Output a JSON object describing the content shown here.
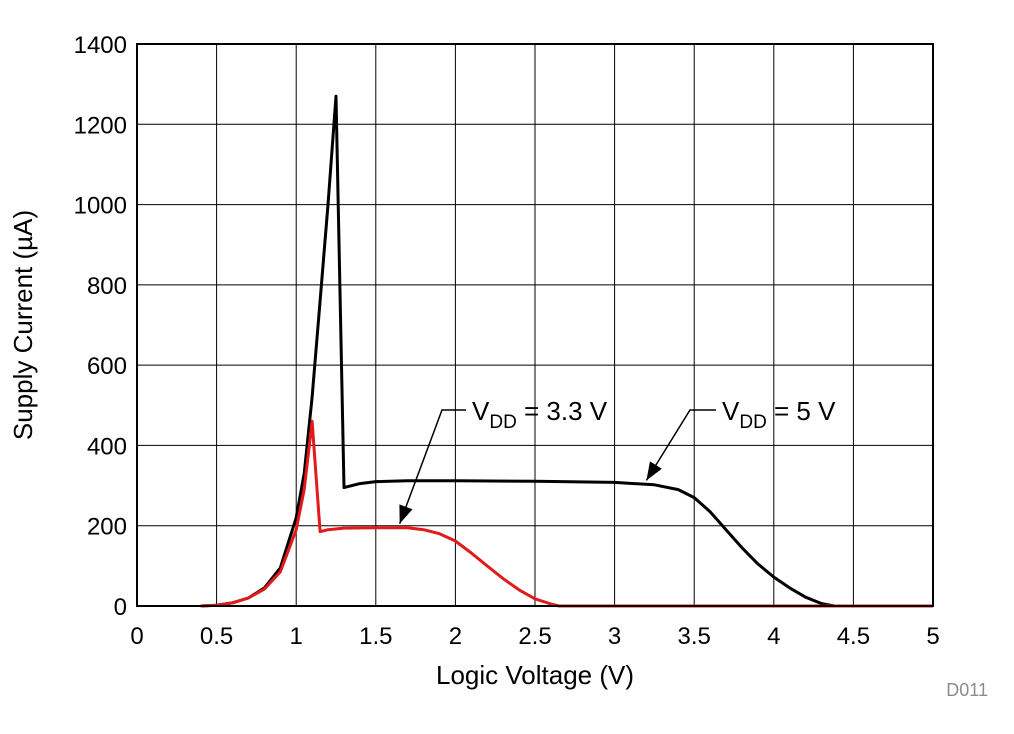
{
  "chart_data": {
    "type": "line",
    "xlabel": "Logic Voltage (V)",
    "ylabel": "Supply Current (µA)",
    "xlim": [
      0,
      5
    ],
    "ylim": [
      0,
      1400
    ],
    "x_ticks": [
      "0",
      "0.5",
      "1",
      "1.5",
      "2",
      "2.5",
      "3",
      "3.5",
      "4",
      "4.5",
      "5"
    ],
    "y_ticks": [
      "0",
      "200",
      "400",
      "600",
      "800",
      "1000",
      "1200",
      "1400"
    ],
    "grid": true,
    "series": [
      {
        "name": "V_DD = 5 V",
        "color": "#000000",
        "points": [
          [
            0.4,
            0
          ],
          [
            0.5,
            2
          ],
          [
            0.6,
            8
          ],
          [
            0.7,
            20
          ],
          [
            0.8,
            45
          ],
          [
            0.9,
            95
          ],
          [
            1.0,
            220
          ],
          [
            1.05,
            330
          ],
          [
            1.1,
            520
          ],
          [
            1.15,
            760
          ],
          [
            1.2,
            1000
          ],
          [
            1.25,
            1270
          ],
          [
            1.3,
            295
          ],
          [
            1.4,
            305
          ],
          [
            1.5,
            310
          ],
          [
            1.7,
            312
          ],
          [
            2.0,
            312
          ],
          [
            2.5,
            311
          ],
          [
            3.0,
            308
          ],
          [
            3.25,
            302
          ],
          [
            3.4,
            290
          ],
          [
            3.5,
            270
          ],
          [
            3.6,
            235
          ],
          [
            3.7,
            190
          ],
          [
            3.8,
            145
          ],
          [
            3.9,
            105
          ],
          [
            4.0,
            72
          ],
          [
            4.1,
            45
          ],
          [
            4.2,
            22
          ],
          [
            4.3,
            6
          ],
          [
            4.38,
            0
          ],
          [
            5.0,
            0
          ]
        ]
      },
      {
        "name": "V_DD = 3.3 V",
        "color": "#e31a1c",
        "points": [
          [
            0.4,
            0
          ],
          [
            0.5,
            2
          ],
          [
            0.6,
            8
          ],
          [
            0.7,
            20
          ],
          [
            0.8,
            42
          ],
          [
            0.9,
            85
          ],
          [
            1.0,
            190
          ],
          [
            1.05,
            290
          ],
          [
            1.1,
            460
          ],
          [
            1.15,
            185
          ],
          [
            1.2,
            190
          ],
          [
            1.3,
            194
          ],
          [
            1.5,
            195
          ],
          [
            1.7,
            195
          ],
          [
            1.8,
            190
          ],
          [
            1.9,
            180
          ],
          [
            2.0,
            162
          ],
          [
            2.1,
            132
          ],
          [
            2.2,
            100
          ],
          [
            2.3,
            68
          ],
          [
            2.4,
            40
          ],
          [
            2.5,
            18
          ],
          [
            2.6,
            5
          ],
          [
            2.65,
            0
          ],
          [
            5.0,
            0
          ]
        ]
      }
    ],
    "annotations": [
      {
        "main": "V",
        "sub": "DD",
        "rest": " = 3.3 V",
        "target": [
          1.65,
          195
        ]
      },
      {
        "main": "V",
        "sub": "DD",
        "rest": " = 5 V",
        "target": [
          3.2,
          303
        ]
      }
    ]
  },
  "figure_code": "D011"
}
